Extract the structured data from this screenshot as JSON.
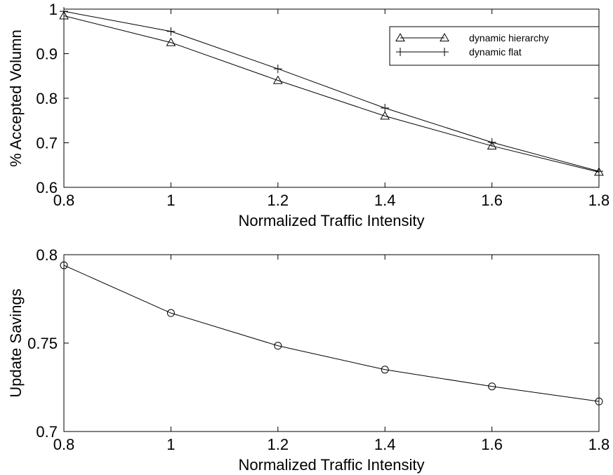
{
  "chart_data": [
    {
      "type": "line",
      "xlabel": "Normalized Traffic Intensity",
      "ylabel": "% Accepted Volumn",
      "x": [
        0.8,
        1.0,
        1.2,
        1.4,
        1.6,
        1.8
      ],
      "xlim": [
        0.8,
        1.8
      ],
      "ylim": [
        0.6,
        1.0
      ],
      "xticks": [
        0.8,
        1.0,
        1.2,
        1.4,
        1.6,
        1.8
      ],
      "xtick_labels": [
        "0.8",
        "1",
        "1.2",
        "1.4",
        "1.6",
        "1.8"
      ],
      "yticks": [
        0.6,
        0.7,
        0.8,
        0.9,
        1.0
      ],
      "ytick_labels": [
        "0.6",
        "0.7",
        "0.8",
        "0.9",
        "1"
      ],
      "grid": false,
      "legend_position": "top-right",
      "series": [
        {
          "name": "dynamic hierarchy",
          "marker": "triangle",
          "color": "#000000",
          "values": [
            0.985,
            0.925,
            0.84,
            0.76,
            0.693,
            0.634
          ]
        },
        {
          "name": "dynamic flat",
          "marker": "plus",
          "color": "#000000",
          "values": [
            0.995,
            0.95,
            0.866,
            0.778,
            0.701,
            0.636
          ]
        }
      ]
    },
    {
      "type": "line",
      "xlabel": "Normalized Traffic Intensity",
      "ylabel": "Update Savings",
      "x": [
        0.8,
        1.0,
        1.2,
        1.4,
        1.6,
        1.8
      ],
      "xlim": [
        0.8,
        1.8
      ],
      "ylim": [
        0.7,
        0.8
      ],
      "xticks": [
        0.8,
        1.0,
        1.2,
        1.4,
        1.6,
        1.8
      ],
      "xtick_labels": [
        "0.8",
        "1",
        "1.2",
        "1.4",
        "1.6",
        "1.8"
      ],
      "yticks": [
        0.7,
        0.75,
        0.8
      ],
      "ytick_labels": [
        "0.7",
        "0.75",
        "0.8"
      ],
      "grid": false,
      "series": [
        {
          "marker": "circle",
          "color": "#000000",
          "values": [
            0.794,
            0.767,
            0.7485,
            0.735,
            0.7255,
            0.717
          ]
        }
      ]
    }
  ]
}
